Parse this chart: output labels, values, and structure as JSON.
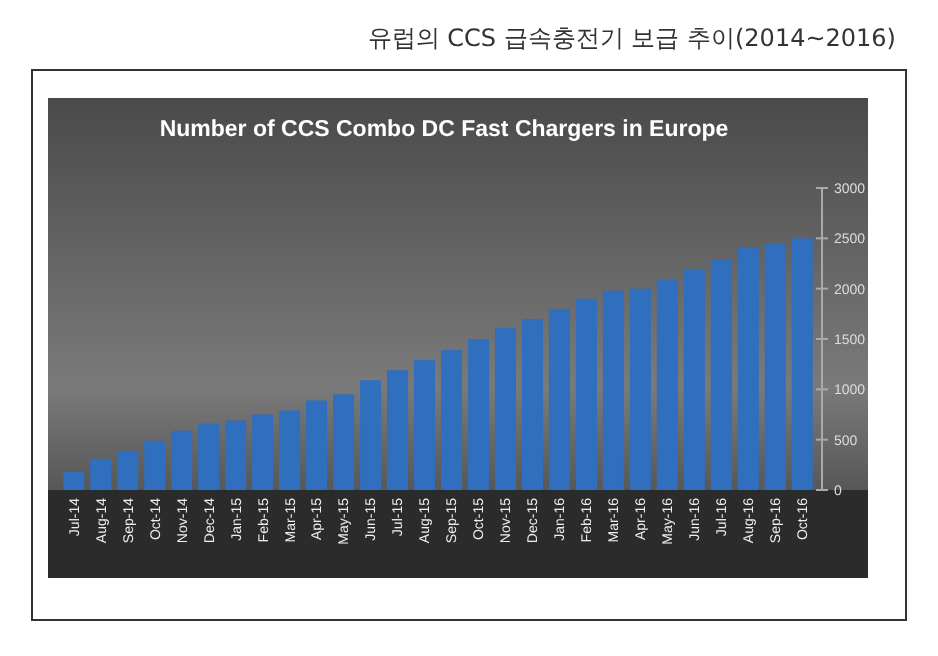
{
  "chart_data": {
    "type": "bar",
    "title": "유럽의 CCS 급속충전기 보급 추이(2014~2016)",
    "subtitle": "Number of CCS Combo DC Fast Chargers in Europe",
    "categories": [
      "Jul-14",
      "Aug-14",
      "Sep-14",
      "Oct-14",
      "Nov-14",
      "Dec-14",
      "Jan-15",
      "Feb-15",
      "Mar-15",
      "Apr-15",
      "May-15",
      "Jun-15",
      "Jul-15",
      "Aug-15",
      "Sep-15",
      "Oct-15",
      "Nov-15",
      "Dec-15",
      "Jan-16",
      "Feb-16",
      "Mar-16",
      "Apr-16",
      "May-16",
      "Jun-16",
      "Jul-16",
      "Aug-16",
      "Sep-16",
      "Oct-16"
    ],
    "values": [
      180,
      310,
      390,
      490,
      590,
      660,
      690,
      750,
      790,
      890,
      950,
      1090,
      1190,
      1290,
      1390,
      1500,
      1610,
      1700,
      1800,
      1900,
      1980,
      2000,
      2090,
      2190,
      2290,
      2410,
      2450,
      2500
    ],
    "color": "#2f6fbd",
    "ylim": [
      0,
      3000
    ],
    "yticks": [
      0,
      500,
      1000,
      1500,
      2000,
      2500,
      3000
    ],
    "grid": false
  }
}
